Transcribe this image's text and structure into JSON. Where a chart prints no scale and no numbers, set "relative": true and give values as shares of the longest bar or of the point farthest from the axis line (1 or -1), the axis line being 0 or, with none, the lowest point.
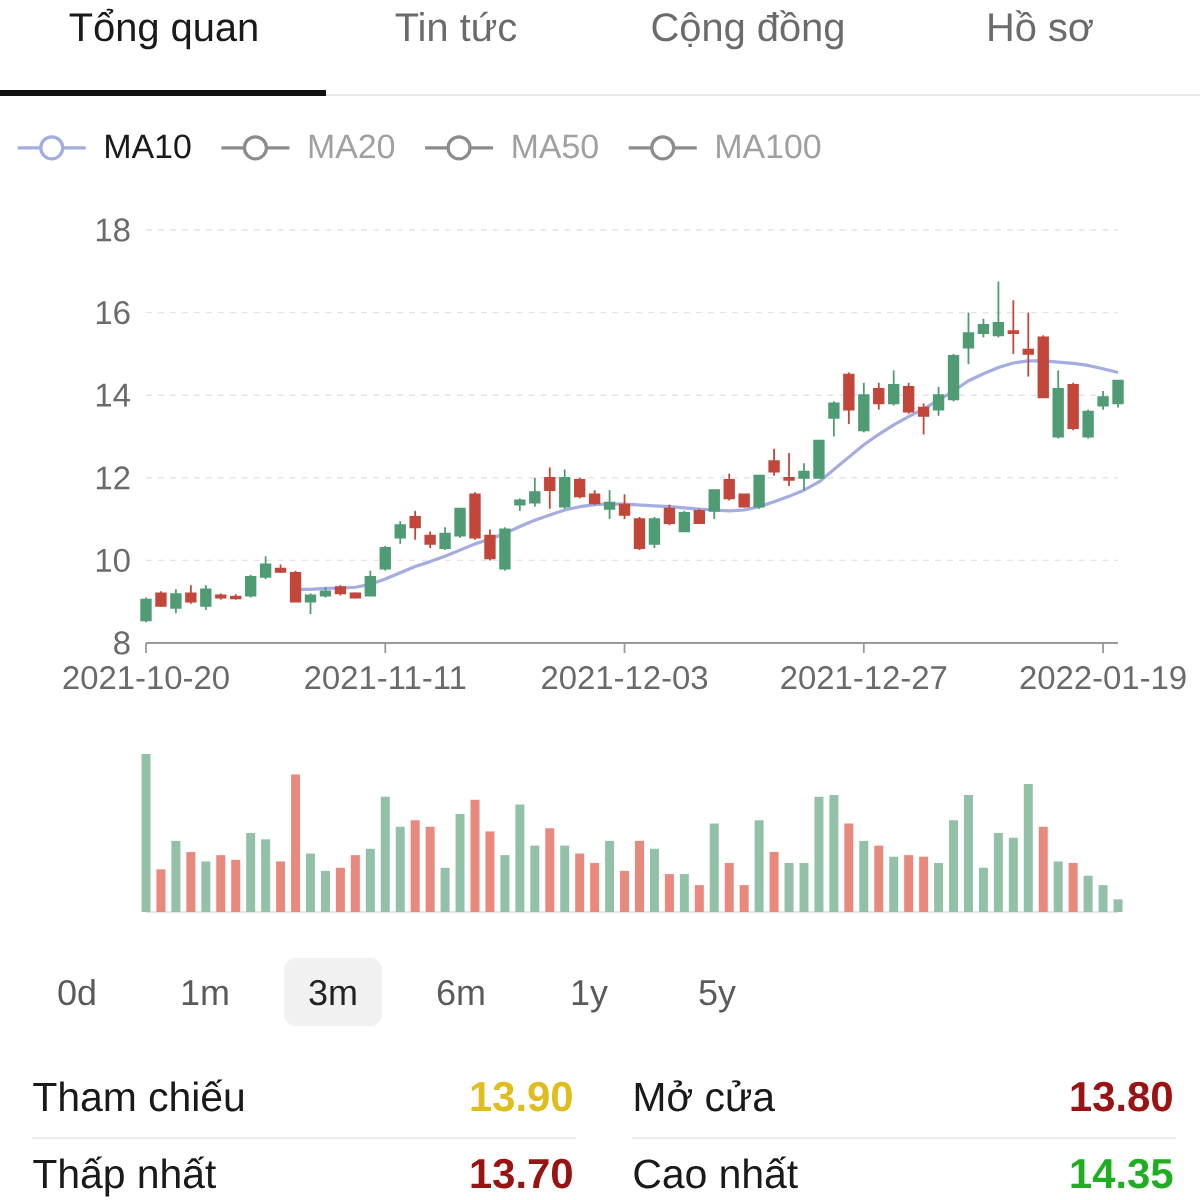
{
  "chart_data": [
    {
      "type": "other",
      "annotations": [
        "Tổng quan",
        "Tin tức",
        "Cộng đồng",
        "Hồ sơ"
      ]
    },
    {
      "type": "candlestick",
      "categories": [
        "2021-10-20",
        null,
        null,
        null,
        null,
        null,
        null,
        null,
        null,
        null,
        null,
        null,
        null,
        null,
        null,
        null,
        "2021-11-11",
        null,
        null,
        null,
        null,
        null,
        null,
        null,
        null,
        null,
        null,
        null,
        null,
        null,
        null,
        null,
        "2021-12-03",
        null,
        null,
        null,
        null,
        null,
        null,
        null,
        null,
        null,
        null,
        null,
        null,
        null,
        null,
        null,
        "2021-12-27",
        null,
        null,
        null,
        null,
        null,
        null,
        null,
        null,
        null,
        null,
        null,
        null,
        null,
        null,
        null,
        "2022-01-19",
        null
      ],
      "ohlc": [
        [
          8.55,
          9.1,
          8.5,
          9.05
        ],
        [
          9.2,
          9.25,
          8.88,
          8.9
        ],
        [
          8.85,
          9.3,
          8.72,
          9.18
        ],
        [
          9.2,
          9.4,
          8.95,
          9.0
        ],
        [
          8.9,
          9.4,
          8.8,
          9.3
        ],
        [
          9.15,
          9.2,
          9.05,
          9.1
        ],
        [
          9.12,
          9.18,
          9.05,
          9.08
        ],
        [
          9.15,
          9.65,
          9.1,
          9.6
        ],
        [
          9.6,
          10.1,
          9.55,
          9.9
        ],
        [
          9.8,
          9.9,
          9.7,
          9.72
        ],
        [
          9.7,
          9.75,
          9.0,
          9.0
        ],
        [
          9.0,
          9.2,
          8.7,
          9.15
        ],
        [
          9.15,
          9.35,
          9.1,
          9.25
        ],
        [
          9.35,
          9.4,
          9.15,
          9.2
        ],
        [
          9.2,
          9.22,
          9.08,
          9.1
        ],
        [
          9.15,
          9.75,
          9.15,
          9.6
        ],
        [
          9.8,
          10.35,
          9.75,
          10.3
        ],
        [
          10.55,
          10.95,
          10.4,
          10.85
        ],
        [
          11.05,
          11.2,
          10.5,
          10.8
        ],
        [
          10.6,
          10.7,
          10.3,
          10.4
        ],
        [
          10.3,
          10.8,
          10.25,
          10.65
        ],
        [
          10.6,
          11.25,
          10.55,
          11.25
        ],
        [
          11.6,
          11.65,
          10.5,
          10.55
        ],
        [
          10.6,
          10.75,
          10.0,
          10.05
        ],
        [
          9.8,
          10.8,
          9.75,
          10.75
        ],
        [
          11.35,
          11.5,
          11.2,
          11.45
        ],
        [
          11.4,
          12.0,
          11.3,
          11.65
        ],
        [
          12.0,
          12.25,
          11.25,
          11.7
        ],
        [
          11.3,
          12.2,
          11.25,
          12.0
        ],
        [
          11.95,
          12.0,
          11.5,
          11.55
        ],
        [
          11.6,
          11.7,
          11.35,
          11.38
        ],
        [
          11.25,
          11.7,
          11.0,
          11.4
        ],
        [
          11.35,
          11.6,
          11.0,
          11.1
        ],
        [
          11.0,
          11.05,
          10.25,
          10.3
        ],
        [
          10.4,
          11.05,
          10.3,
          11.0
        ],
        [
          11.25,
          11.35,
          10.85,
          10.9
        ],
        [
          10.7,
          11.2,
          10.7,
          11.15
        ],
        [
          11.2,
          11.25,
          10.9,
          10.9
        ],
        [
          11.2,
          11.7,
          11.0,
          11.7
        ],
        [
          11.95,
          12.1,
          11.45,
          11.5
        ],
        [
          11.6,
          11.6,
          11.28,
          11.3
        ],
        [
          11.3,
          12.05,
          11.25,
          12.05
        ],
        [
          12.4,
          12.7,
          12.05,
          12.15
        ],
        [
          12.0,
          12.6,
          11.8,
          11.95
        ],
        [
          12.0,
          12.35,
          11.7,
          12.15
        ],
        [
          12.0,
          12.9,
          12.0,
          12.9
        ],
        [
          13.45,
          13.85,
          13.0,
          13.8
        ],
        [
          14.5,
          14.55,
          13.3,
          13.65
        ],
        [
          13.15,
          14.3,
          13.1,
          14.0
        ],
        [
          14.15,
          14.3,
          13.65,
          13.8
        ],
        [
          13.8,
          14.6,
          13.75,
          14.25
        ],
        [
          14.2,
          14.3,
          13.55,
          13.6
        ],
        [
          13.7,
          13.8,
          13.05,
          13.5
        ],
        [
          13.65,
          14.2,
          13.5,
          14.0
        ],
        [
          13.9,
          15.0,
          13.85,
          14.95
        ],
        [
          15.15,
          16.0,
          14.75,
          15.5
        ],
        [
          15.5,
          15.85,
          15.4,
          15.7
        ],
        [
          15.45,
          16.75,
          15.4,
          15.75
        ],
        [
          15.55,
          16.3,
          15.0,
          15.5
        ],
        [
          15.1,
          16.0,
          14.45,
          15.0
        ],
        [
          15.4,
          15.45,
          13.95,
          13.95
        ],
        [
          13.0,
          14.6,
          12.95,
          14.15
        ],
        [
          14.25,
          14.3,
          13.15,
          13.2
        ],
        [
          13.0,
          13.65,
          12.95,
          13.6
        ],
        [
          13.75,
          14.1,
          13.65,
          13.95
        ],
        [
          13.8,
          14.35,
          13.7,
          14.35
        ]
      ],
      "colors": [
        "#4f9c74",
        "#c2473a",
        "#4f9c74",
        "#c2473a",
        "#4f9c74",
        "#c2473a",
        "#c2473a",
        "#4f9c74",
        "#4f9c74",
        "#c2473a",
        "#c2473a",
        "#4f9c74",
        "#4f9c74",
        "#c2473a",
        "#c2473a",
        "#4f9c74",
        "#4f9c74",
        "#4f9c74",
        "#c2473a",
        "#c2473a",
        "#4f9c74",
        "#4f9c74",
        "#c2473a",
        "#c2473a",
        "#4f9c74",
        "#4f9c74",
        "#4f9c74",
        "#c2473a",
        "#4f9c74",
        "#c2473a",
        "#c2473a",
        "#4f9c74",
        "#c2473a",
        "#c2473a",
        "#4f9c74",
        "#c2473a",
        "#4f9c74",
        "#c2473a",
        "#4f9c74",
        "#c2473a",
        "#c2473a",
        "#4f9c74",
        "#c2473a",
        "#c2473a",
        "#4f9c74",
        "#4f9c74",
        "#4f9c74",
        "#c2473a",
        "#4f9c74",
        "#c2473a",
        "#4f9c74",
        "#c2473a",
        "#c2473a",
        "#4f9c74",
        "#4f9c74",
        "#4f9c74",
        "#4f9c74",
        "#4f9c74",
        "#c2473a",
        "#c2473a",
        "#c2473a",
        "#4f9c74",
        "#c2473a",
        "#4f9c74",
        "#4f9c74",
        "#4f9c74"
      ],
      "series": [
        {
          "name": "MA10",
          "type": "line",
          "color": "#a3ade2",
          "values": [
            null,
            null,
            null,
            null,
            null,
            null,
            null,
            null,
            null,
            null,
            9.3,
            9.3,
            9.32,
            9.33,
            9.35,
            9.42,
            9.55,
            9.7,
            9.85,
            9.97,
            10.1,
            10.25,
            10.4,
            10.52,
            10.65,
            10.82,
            10.97,
            11.1,
            11.22,
            11.3,
            11.35,
            11.37,
            11.36,
            11.34,
            11.32,
            11.3,
            11.27,
            11.24,
            11.22,
            11.2,
            11.22,
            11.3,
            11.42,
            11.55,
            11.7,
            11.9,
            12.2,
            12.5,
            12.8,
            13.05,
            13.28,
            13.48,
            13.67,
            13.88,
            14.1,
            14.35,
            14.52,
            14.67,
            14.78,
            14.83,
            14.83,
            14.8,
            14.77,
            14.72,
            14.64,
            14.55
          ]
        },
        {
          "name": "MA20",
          "type": "line",
          "color": "#8c8c8c",
          "values": [
            null,
            null,
            null,
            null,
            null,
            null,
            null,
            null,
            null,
            null,
            null,
            null,
            null,
            null,
            null,
            null,
            null,
            null,
            null,
            null,
            null,
            null,
            null,
            null,
            null,
            null,
            null,
            null,
            null,
            null,
            null,
            null,
            null,
            null,
            null,
            null,
            null,
            null,
            null,
            null,
            null,
            null,
            null,
            null,
            null,
            null,
            null,
            null,
            null,
            null,
            null,
            null,
            null,
            null,
            null,
            null,
            null,
            null,
            null,
            null,
            null,
            null,
            null,
            null,
            null,
            null
          ]
        },
        {
          "name": "MA50",
          "type": "line",
          "color": "#8c8c8c",
          "values": [
            null,
            null,
            null,
            null,
            null,
            null,
            null,
            null,
            null,
            null,
            null,
            null,
            null,
            null,
            null,
            null,
            null,
            null,
            null,
            null,
            null,
            null,
            null,
            null,
            null,
            null,
            null,
            null,
            null,
            null,
            null,
            null,
            null,
            null,
            null,
            null,
            null,
            null,
            null,
            null,
            null,
            null,
            null,
            null,
            null,
            null,
            null,
            null,
            null,
            null,
            null,
            null,
            null,
            null,
            null,
            null,
            null,
            null,
            null,
            null,
            null,
            null,
            null,
            null,
            null,
            null
          ]
        },
        {
          "name": "MA100",
          "type": "line",
          "color": "#8c8c8c",
          "values": [
            null,
            null,
            null,
            null,
            null,
            null,
            null,
            null,
            null,
            null,
            null,
            null,
            null,
            null,
            null,
            null,
            null,
            null,
            null,
            null,
            null,
            null,
            null,
            null,
            null,
            null,
            null,
            null,
            null,
            null,
            null,
            null,
            null,
            null,
            null,
            null,
            null,
            null,
            null,
            null,
            null,
            null,
            null,
            null,
            null,
            null,
            null,
            null,
            null,
            null,
            null,
            null,
            null,
            null,
            null,
            null,
            null,
            null,
            null,
            null,
            null,
            null,
            null,
            null,
            null,
            null
          ]
        }
      ],
      "ylim": [
        8,
        18
      ],
      "yticks": [
        8,
        10,
        12,
        14,
        16,
        18
      ],
      "grid": "y",
      "legend": "top left"
    },
    {
      "type": "bar",
      "relative": true,
      "categories": [
        null,
        null,
        null,
        null,
        null,
        null,
        null,
        null,
        null,
        null,
        null,
        null,
        null,
        null,
        null,
        null,
        null,
        null,
        null,
        null,
        null,
        null,
        null,
        null,
        null,
        null,
        null,
        null,
        null,
        null,
        null,
        null,
        null,
        null,
        null,
        null,
        null,
        null,
        null,
        null,
        null,
        null,
        null,
        null,
        null,
        null,
        null,
        null,
        null,
        null,
        null,
        null,
        null,
        null,
        null,
        null,
        null,
        null,
        null,
        null,
        null,
        null,
        null,
        null,
        null,
        null
      ],
      "values": [
        1,
        0.27,
        0.45,
        0.38,
        0.32,
        0.36,
        0.33,
        0.5,
        0.46,
        0.32,
        0.87,
        0.37,
        0.26,
        0.28,
        0.36,
        0.4,
        0.73,
        0.54,
        0.58,
        0.54,
        0.28,
        0.62,
        0.71,
        0.51,
        0.36,
        0.68,
        0.42,
        0.53,
        0.42,
        0.37,
        0.31,
        0.45,
        0.26,
        0.45,
        0.4,
        0.24,
        0.24,
        0.17,
        0.56,
        0.31,
        0.17,
        0.58,
        0.38,
        0.31,
        0.31,
        0.73,
        0.74,
        0.56,
        0.45,
        0.42,
        0.35,
        0.36,
        0.35,
        0.31,
        0.58,
        0.74,
        0.28,
        0.5,
        0.47,
        0.81,
        0.54,
        0.32,
        0.31,
        0.23,
        0.17,
        0.08
      ],
      "colors": [
        "#93c1a8",
        "#e8897e",
        "#93c1a8",
        "#e8897e",
        "#93c1a8",
        "#e8897e",
        "#e8897e",
        "#93c1a8",
        "#93c1a8",
        "#e8897e",
        "#e8897e",
        "#93c1a8",
        "#93c1a8",
        "#e8897e",
        "#e8897e",
        "#93c1a8",
        "#93c1a8",
        "#93c1a8",
        "#e8897e",
        "#e8897e",
        "#93c1a8",
        "#93c1a8",
        "#e8897e",
        "#e8897e",
        "#93c1a8",
        "#93c1a8",
        "#93c1a8",
        "#e8897e",
        "#93c1a8",
        "#e8897e",
        "#e8897e",
        "#93c1a8",
        "#e8897e",
        "#e8897e",
        "#93c1a8",
        "#e8897e",
        "#93c1a8",
        "#e8897e",
        "#93c1a8",
        "#e8897e",
        "#e8897e",
        "#93c1a8",
        "#e8897e",
        "#93c1a8",
        "#93c1a8",
        "#93c1a8",
        "#93c1a8",
        "#e8897e",
        "#93c1a8",
        "#e8897e",
        "#93c1a8",
        "#e8897e",
        "#e8897e",
        "#93c1a8",
        "#93c1a8",
        "#93c1a8",
        "#93c1a8",
        "#93c1a8",
        "#93c1a8",
        "#93c1a8",
        "#e8897e",
        "#93c1a8",
        "#e8897e",
        "#93c1a8",
        "#93c1a8",
        "#93c1a8"
      ]
    },
    {
      "type": "other",
      "annotations": [
        "0d",
        "1m",
        "3m",
        "6m",
        "1y",
        "5y"
      ]
    },
    {
      "type": "other",
      "annotations": [
        "Tham chiếu",
        "13.90",
        "Mở cửa",
        "13.80",
        "Thấp nhất",
        "13.70",
        "Cao nhất",
        "14.35"
      ]
    }
  ]
}
